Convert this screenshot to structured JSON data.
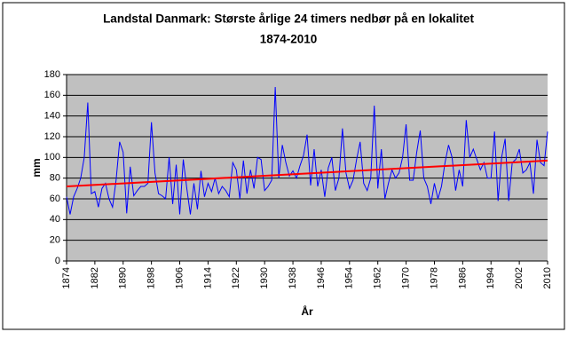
{
  "chart_data": {
    "type": "line",
    "title": "Landstal Danmark: Største årlige 24 timers nedbør på en lokalitet",
    "subtitle": "1874-2010",
    "x_label": "År",
    "y_label": "mm",
    "x": [
      1874,
      1875,
      1876,
      1877,
      1878,
      1879,
      1880,
      1881,
      1882,
      1883,
      1884,
      1885,
      1886,
      1887,
      1888,
      1889,
      1890,
      1891,
      1892,
      1893,
      1894,
      1895,
      1896,
      1897,
      1898,
      1899,
      1900,
      1901,
      1902,
      1903,
      1904,
      1905,
      1906,
      1907,
      1908,
      1909,
      1910,
      1911,
      1912,
      1913,
      1914,
      1915,
      1916,
      1917,
      1918,
      1919,
      1920,
      1921,
      1922,
      1923,
      1924,
      1925,
      1926,
      1927,
      1928,
      1929,
      1930,
      1931,
      1932,
      1933,
      1934,
      1935,
      1936,
      1937,
      1938,
      1939,
      1940,
      1941,
      1942,
      1943,
      1944,
      1945,
      1946,
      1947,
      1948,
      1949,
      1950,
      1951,
      1952,
      1953,
      1954,
      1955,
      1956,
      1957,
      1958,
      1959,
      1960,
      1961,
      1962,
      1963,
      1964,
      1965,
      1966,
      1967,
      1968,
      1969,
      1970,
      1971,
      1972,
      1973,
      1974,
      1975,
      1976,
      1977,
      1978,
      1979,
      1980,
      1981,
      1982,
      1983,
      1984,
      1985,
      1986,
      1987,
      1988,
      1989,
      1990,
      1991,
      1992,
      1993,
      1994,
      1995,
      1996,
      1997,
      1998,
      1999,
      2000,
      2001,
      2002,
      2003,
      2004,
      2005,
      2006,
      2007,
      2008,
      2009,
      2010
    ],
    "series": [
      {
        "color": "#0000ff",
        "values": [
          62,
          45,
          62,
          70,
          80,
          100,
          153,
          65,
          67,
          52,
          70,
          75,
          60,
          52,
          78,
          115,
          105,
          46,
          91,
          63,
          68,
          72,
          72,
          75,
          134,
          85,
          65,
          63,
          60,
          100,
          55,
          93,
          45,
          98,
          70,
          45,
          75,
          50,
          87,
          62,
          75,
          67,
          80,
          65,
          72,
          68,
          62,
          95,
          88,
          60,
          97,
          65,
          88,
          70,
          100,
          98,
          68,
          72,
          78,
          168,
          80,
          112,
          95,
          82,
          87,
          80,
          92,
          102,
          122,
          73,
          108,
          72,
          88,
          62,
          90,
          100,
          68,
          80,
          128,
          85,
          70,
          78,
          98,
          115,
          75,
          68,
          80,
          150,
          70,
          108,
          60,
          75,
          88,
          80,
          85,
          100,
          132,
          78,
          78,
          105,
          126,
          80,
          72,
          55,
          75,
          60,
          72,
          95,
          112,
          100,
          68,
          88,
          72,
          136,
          100,
          108,
          98,
          88,
          95,
          80,
          80,
          125,
          58,
          100,
          118,
          58,
          95,
          98,
          108,
          85,
          88,
          95,
          65,
          117,
          95,
          92,
          125
        ]
      }
    ],
    "trendline": {
      "color": "#ff0000",
      "x": [
        1874,
        2010
      ],
      "values": [
        72,
        97
      ]
    },
    "xlim": [
      1874,
      2010
    ],
    "xticks": [
      1874,
      1882,
      1890,
      1898,
      1906,
      1914,
      1922,
      1930,
      1938,
      1946,
      1954,
      1962,
      1970,
      1978,
      1986,
      1994,
      2002,
      2010
    ],
    "ylim": [
      0,
      180
    ],
    "yticks": [
      0,
      20,
      40,
      60,
      80,
      100,
      120,
      140,
      160,
      180
    ],
    "grid": true
  }
}
